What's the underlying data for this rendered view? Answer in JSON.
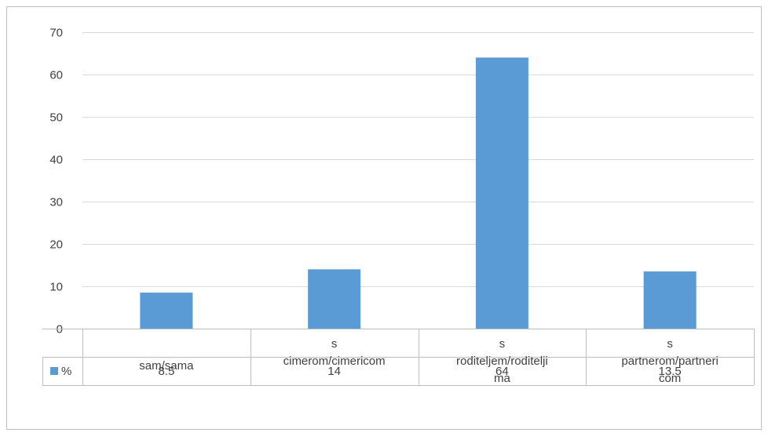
{
  "chart_data": {
    "type": "bar",
    "categories": [
      [
        "sam/sama"
      ],
      [
        "s",
        "cimerom/cimericom"
      ],
      [
        "s",
        "roditeljem/roditelji",
        "ma"
      ],
      [
        "s",
        "partnerom/partneri",
        "com"
      ]
    ],
    "series": [
      {
        "name": "%",
        "values": [
          8.5,
          14,
          64,
          13.5
        ],
        "value_labels": [
          "8.5",
          "14",
          "64",
          "13.5"
        ]
      }
    ],
    "yticks": [
      "0",
      "10",
      "20",
      "30",
      "40",
      "50",
      "60",
      "70"
    ],
    "ylim": [
      0,
      70
    ],
    "grid": true,
    "legend": "data-table",
    "colors": {
      "bar": "#5b9bd5",
      "grid": "#d9d9d9",
      "border": "#bfbfbf",
      "text": "#404040"
    }
  }
}
